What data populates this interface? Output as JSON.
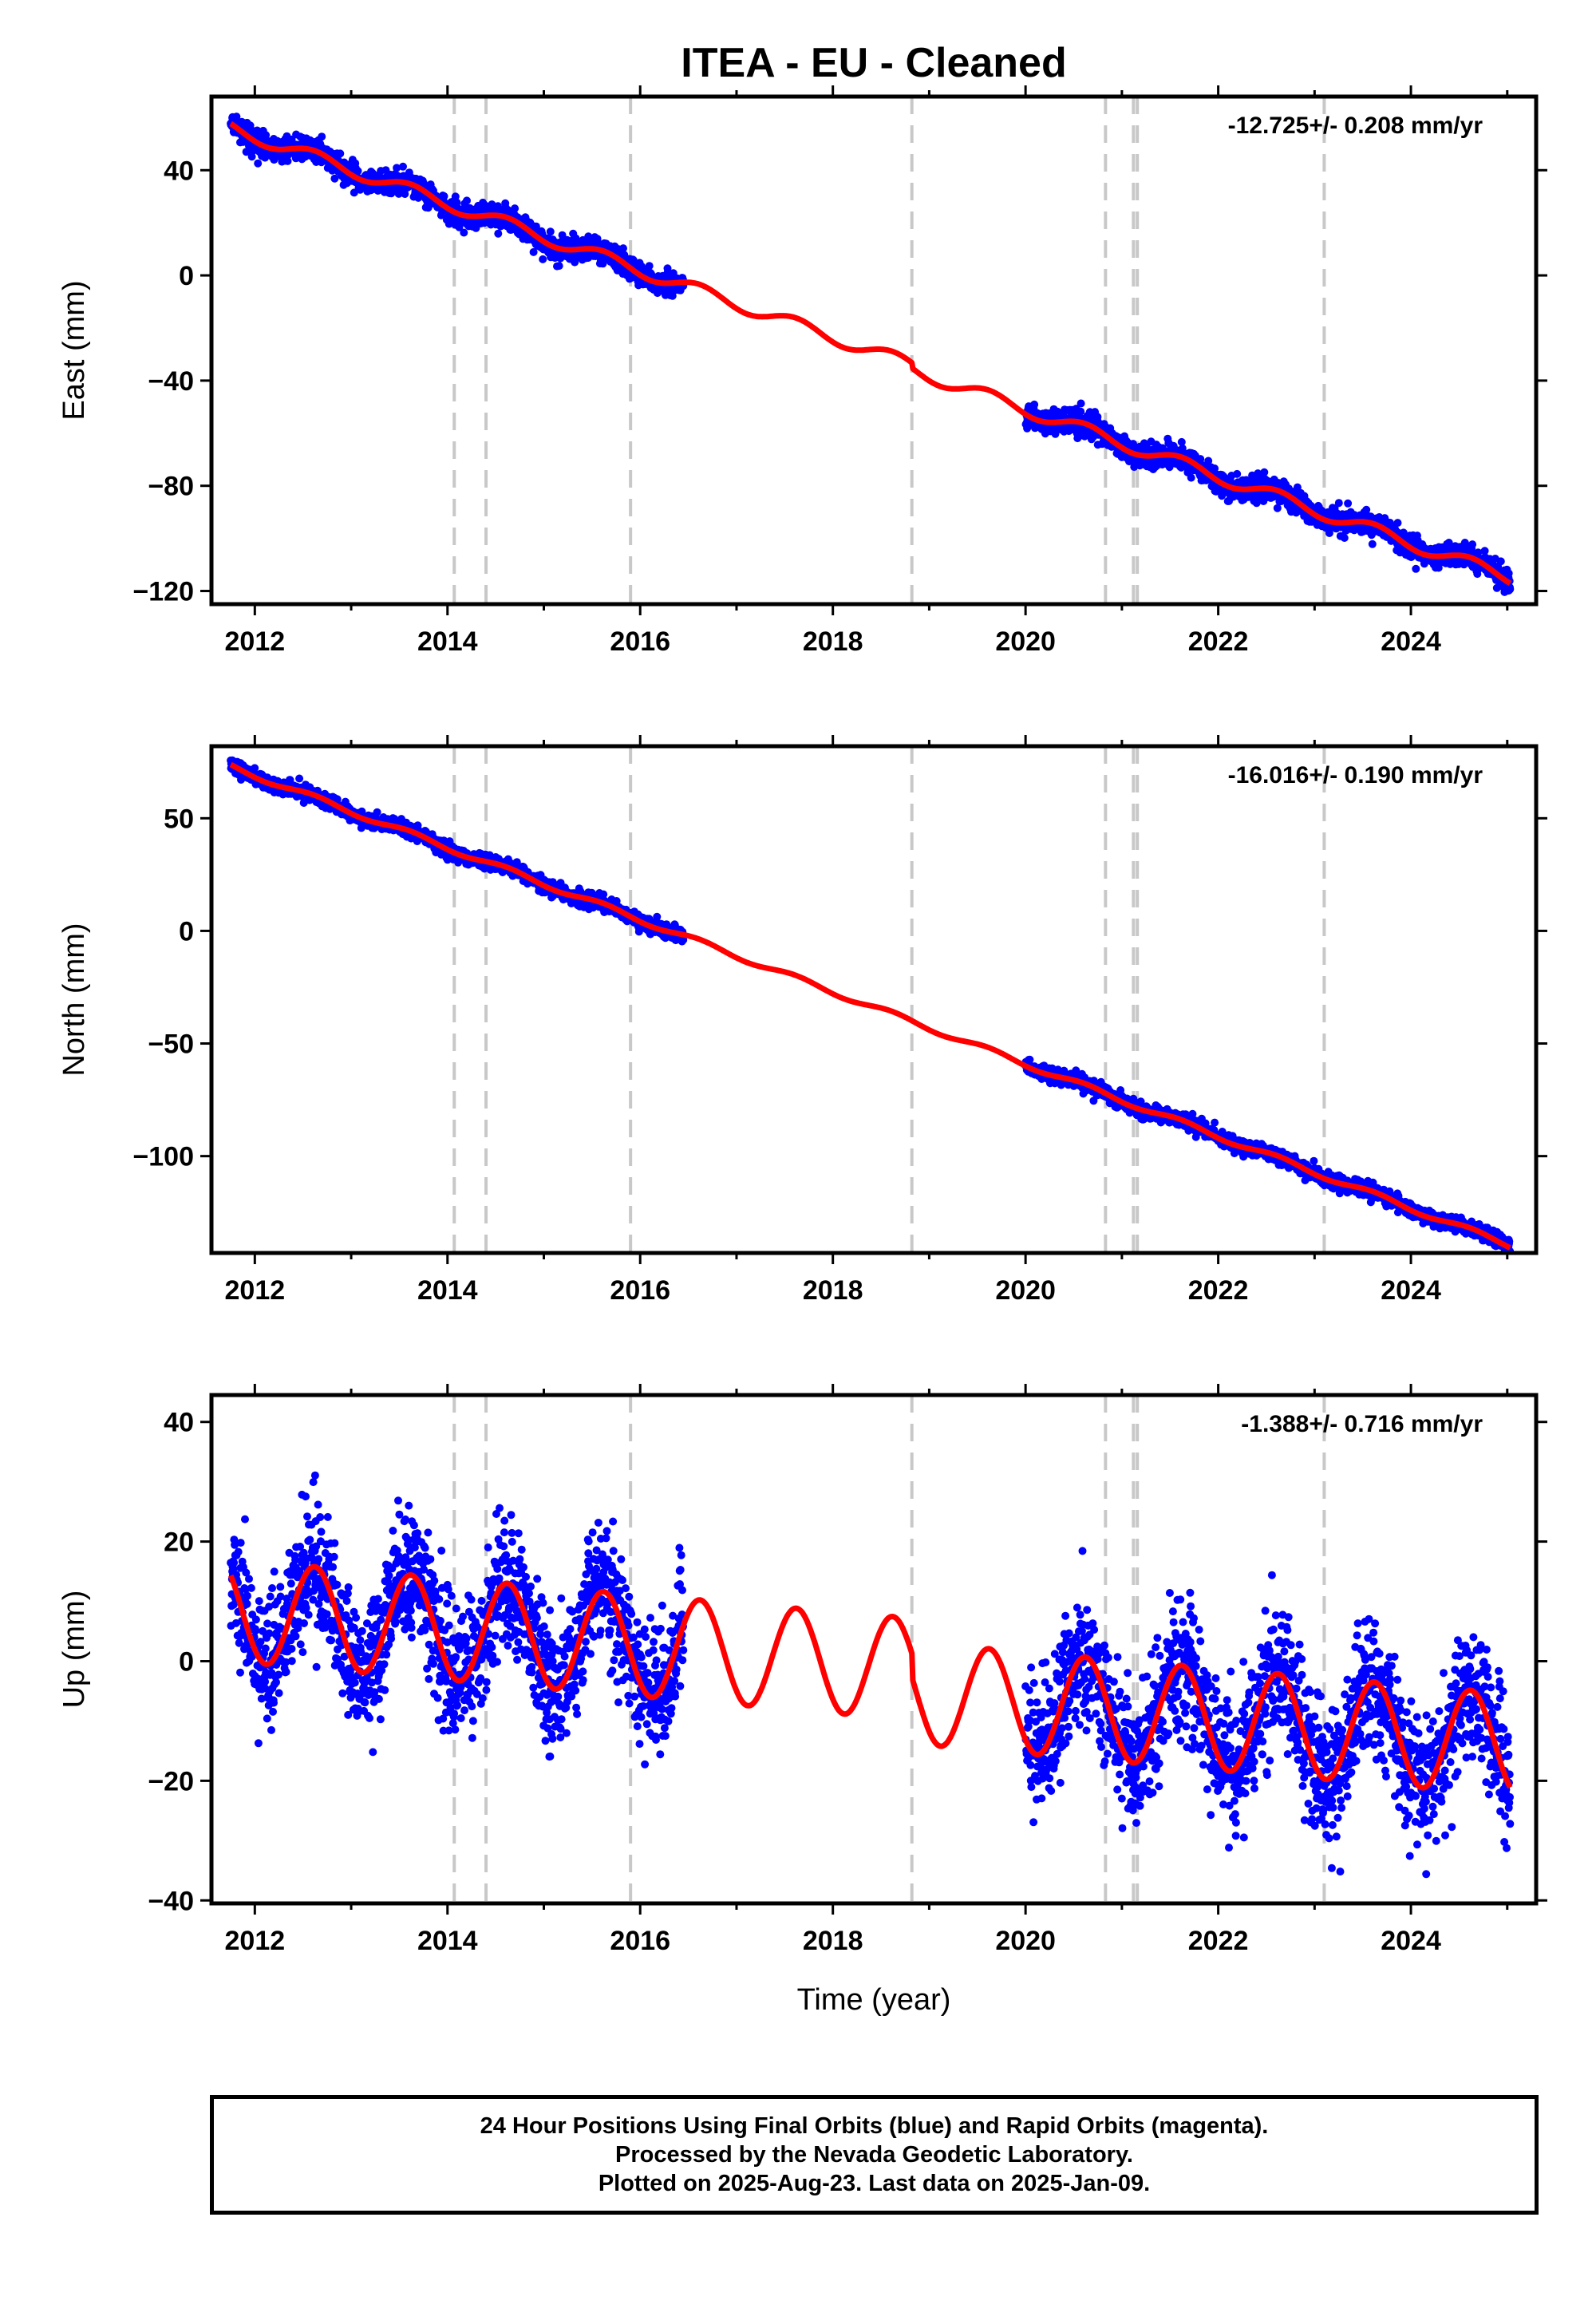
{
  "title": "ITEA  - EU - Cleaned",
  "xlabel": "Time (year)",
  "footer": [
    "24 Hour Positions Using Final Orbits (blue) and Rapid Orbits (magenta).",
    "Processed by the Nevada Geodetic Laboratory.",
    "Plotted on 2025-Aug-23. Last data on 2025-Jan-09."
  ],
  "colors": {
    "final_orbits": "#0000ff",
    "model": "#ff0000",
    "event_lines": "#c8c8c8",
    "axes": "#000000"
  },
  "chart_data": [
    {
      "type": "scatter",
      "ylabel": "East (mm)",
      "rate_label": "-12.725+/- 0.208 mm/yr",
      "xlim": [
        2011.55,
        2025.3
      ],
      "ylim": [
        -125,
        68
      ],
      "xticks": [
        2012,
        2014,
        2016,
        2018,
        2020,
        2022,
        2024
      ],
      "yticks": [
        -120,
        -80,
        -40,
        0,
        40
      ],
      "event_lines": [
        2014.07,
        2014.4,
        2015.9,
        2018.82,
        2020.83,
        2021.12,
        2021.16,
        2023.1
      ],
      "model": {
        "trend_per_yr": -12.725,
        "intercept": 56,
        "intercept_year": 2011.75,
        "annual_amplitude": 2.5,
        "jumps": [
          [
            2018.82,
            -2
          ]
        ]
      },
      "data_segments": [
        {
          "start": 2011.75,
          "end": 2016.45,
          "scatter": 2.2
        },
        {
          "start": 2020.0,
          "end": 2025.03,
          "scatter": 2.2
        }
      ]
    },
    {
      "type": "scatter",
      "ylabel": "North (mm)",
      "rate_label": "-16.016+/- 0.190 mm/yr",
      "xlim": [
        2011.55,
        2025.3
      ],
      "ylim": [
        -143,
        82
      ],
      "xticks": [
        2012,
        2014,
        2016,
        2018,
        2020,
        2022,
        2024
      ],
      "yticks": [
        -100,
        -50,
        0,
        50
      ],
      "event_lines": [
        2014.07,
        2014.4,
        2015.9,
        2018.82,
        2020.83,
        2021.12,
        2021.16,
        2023.1
      ],
      "model": {
        "trend_per_yr": -16.016,
        "intercept": 73,
        "intercept_year": 2011.75,
        "annual_amplitude": 1.2,
        "jumps": []
      },
      "data_segments": [
        {
          "start": 2011.75,
          "end": 2016.45,
          "scatter": 1.6
        },
        {
          "start": 2020.0,
          "end": 2025.03,
          "scatter": 1.6
        }
      ]
    },
    {
      "type": "scatter",
      "ylabel": "Up (mm)",
      "rate_label": "-1.388+/- 0.716 mm/yr",
      "xlim": [
        2011.55,
        2025.3
      ],
      "ylim": [
        -40.5,
        44.5
      ],
      "xticks": [
        2012,
        2014,
        2016,
        2018,
        2020,
        2022,
        2024
      ],
      "yticks": [
        -40,
        -20,
        0,
        20,
        40
      ],
      "event_lines": [
        2014.07,
        2014.4,
        2015.9,
        2018.82,
        2020.83,
        2021.12,
        2021.16,
        2023.1
      ],
      "model": {
        "trend_per_yr": -1.388,
        "intercept": 8.5,
        "intercept_year": 2011.75,
        "annual_amplitude": 8.5,
        "jumps": [
          [
            2018.82,
            -4
          ]
        ]
      },
      "data_segments": [
        {
          "start": 2011.75,
          "end": 2016.45,
          "scatter": 5.5
        },
        {
          "start": 2020.0,
          "end": 2025.03,
          "scatter": 5.5
        }
      ]
    }
  ]
}
